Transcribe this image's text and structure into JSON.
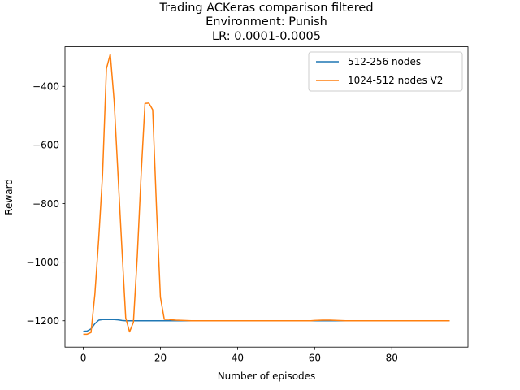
{
  "chart_data": {
    "type": "line",
    "title_lines": [
      "Trading ACKeras comparison filtered",
      "Environment: Punish",
      "LR: 0.0001-0.0005"
    ],
    "xlabel": "Number of episodes",
    "ylabel": "Reward",
    "xlim": [
      -4.75,
      99.75
    ],
    "ylim": [
      -1290,
      -265
    ],
    "xticks": [
      0,
      20,
      40,
      60,
      80
    ],
    "yticks": [
      -1200,
      -1000,
      -800,
      -600,
      -400
    ],
    "x_tick_labels": [
      "0",
      "20",
      "40",
      "60",
      "80"
    ],
    "y_tick_labels": [
      "−1200",
      "−1000",
      "−800",
      "−600",
      "−400"
    ],
    "grid": false,
    "legend_position": "top-right",
    "series": [
      {
        "name": "512-256 nodes",
        "color": "#1f77b4",
        "points": [
          [
            0,
            -1236
          ],
          [
            1,
            -1235
          ],
          [
            2,
            -1228
          ],
          [
            3,
            -1210
          ],
          [
            4,
            -1198
          ],
          [
            5,
            -1196
          ],
          [
            6,
            -1196
          ],
          [
            7,
            -1196
          ],
          [
            8,
            -1196
          ],
          [
            9,
            -1197
          ],
          [
            10,
            -1199
          ],
          [
            11,
            -1200
          ],
          [
            12,
            -1200
          ],
          [
            20,
            -1200
          ],
          [
            30,
            -1200
          ],
          [
            40,
            -1200
          ],
          [
            50,
            -1200
          ],
          [
            60,
            -1200
          ],
          [
            70,
            -1200
          ],
          [
            80,
            -1200
          ],
          [
            90,
            -1200
          ],
          [
            95,
            -1200
          ]
        ]
      },
      {
        "name": "1024-512 nodes V2",
        "color": "#ff7f0e",
        "points": [
          [
            0,
            -1246
          ],
          [
            1,
            -1246
          ],
          [
            2,
            -1240
          ],
          [
            3,
            -1110
          ],
          [
            4,
            -920
          ],
          [
            5,
            -700
          ],
          [
            6,
            -340
          ],
          [
            7,
            -290
          ],
          [
            8,
            -450
          ],
          [
            9,
            -700
          ],
          [
            10,
            -950
          ],
          [
            11,
            -1190
          ],
          [
            12,
            -1238
          ],
          [
            13,
            -1205
          ],
          [
            14,
            -980
          ],
          [
            15,
            -700
          ],
          [
            16,
            -458
          ],
          [
            17,
            -457
          ],
          [
            18,
            -480
          ],
          [
            19,
            -820
          ],
          [
            20,
            -1120
          ],
          [
            21,
            -1195
          ],
          [
            22,
            -1195
          ],
          [
            23,
            -1197
          ],
          [
            24,
            -1198
          ],
          [
            26,
            -1199
          ],
          [
            28,
            -1200
          ],
          [
            40,
            -1200
          ],
          [
            50,
            -1200
          ],
          [
            59,
            -1200
          ],
          [
            60,
            -1199
          ],
          [
            62,
            -1198
          ],
          [
            64,
            -1198
          ],
          [
            66,
            -1199
          ],
          [
            68,
            -1200
          ],
          [
            80,
            -1200
          ],
          [
            90,
            -1200
          ],
          [
            95,
            -1200
          ]
        ]
      }
    ]
  }
}
